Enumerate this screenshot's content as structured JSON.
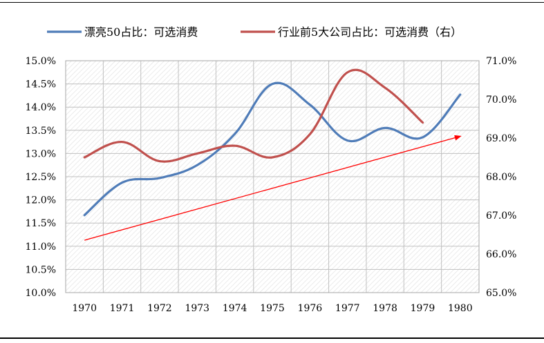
{
  "chart_data": {
    "type": "line",
    "x": [
      1970,
      1971,
      1972,
      1973,
      1974,
      1975,
      1976,
      1977,
      1978,
      1979,
      1980
    ],
    "x_tick_labels": [
      "1970",
      "1971",
      "1972",
      "1973",
      "1974",
      "1975",
      "1976",
      "1977",
      "1978",
      "1979",
      "1980"
    ],
    "series": [
      {
        "name": "漂亮50占比：可选消费",
        "axis": "left",
        "color": "#4F7CB8",
        "x": [
          1970,
          1971,
          1972,
          1973,
          1974,
          1975,
          1976,
          1977,
          1978,
          1979,
          1980
        ],
        "values": [
          11.67,
          12.37,
          12.47,
          12.75,
          13.42,
          14.5,
          14.05,
          13.28,
          13.55,
          13.35,
          14.27
        ]
      },
      {
        "name": "行业前5大公司占比：可选消费（右）",
        "axis": "right",
        "color": "#C0504D",
        "x": [
          1970,
          1971,
          1972,
          1973,
          1974,
          1975,
          1976,
          1977,
          1978,
          1979
        ],
        "values": [
          68.5,
          68.9,
          68.4,
          68.6,
          68.8,
          68.5,
          69.1,
          70.7,
          70.3,
          69.4
        ]
      }
    ],
    "trend_arrow": {
      "color": "#FF0000",
      "axis": "left",
      "start": {
        "x": 1970,
        "y": 11.13
      },
      "end": {
        "x": 1980,
        "y": 13.37
      }
    },
    "left_axis": {
      "ylim": [
        10.0,
        15.0
      ],
      "ticks": [
        "10.0%",
        "10.5%",
        "11.0%",
        "11.5%",
        "12.0%",
        "12.5%",
        "13.0%",
        "13.5%",
        "14.0%",
        "14.5%",
        "15.0%"
      ]
    },
    "right_axis": {
      "ylim": [
        65.0,
        71.0
      ],
      "ticks": [
        "65.0%",
        "66.0%",
        "67.0%",
        "68.0%",
        "69.0%",
        "70.0%",
        "71.0%"
      ]
    },
    "grid": true,
    "legend_position": "top",
    "plot_background": "hatched light gray"
  }
}
